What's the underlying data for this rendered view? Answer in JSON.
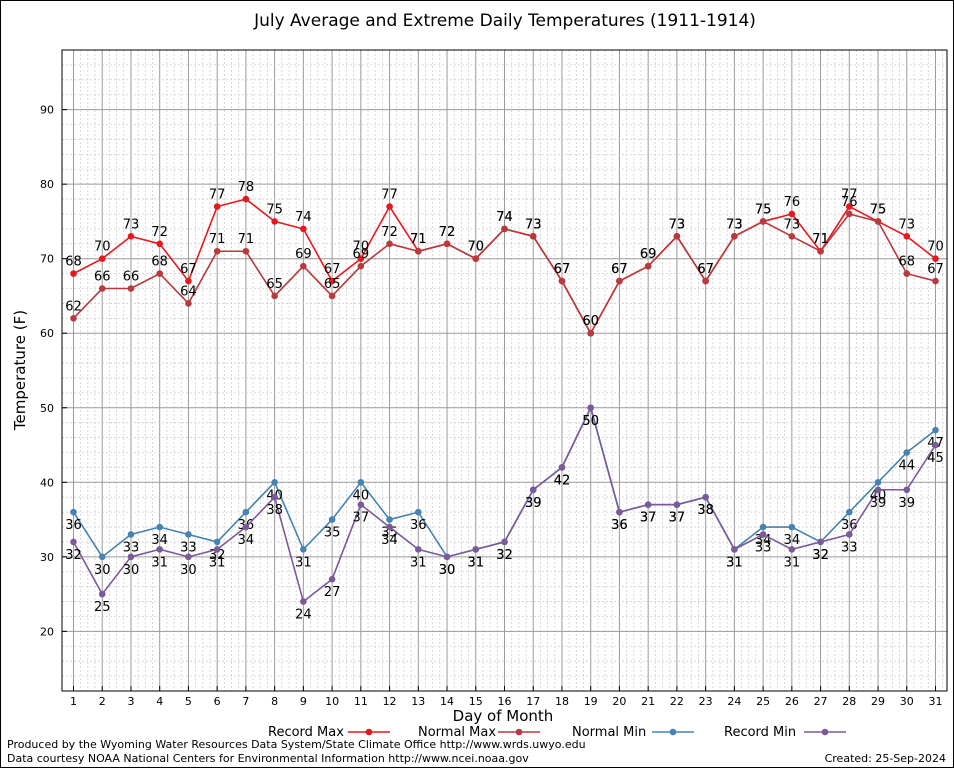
{
  "chart_data": {
    "type": "line",
    "title": "July Average and Extreme Daily Temperatures (1911-1914)",
    "xlabel": "Day of Month",
    "ylabel": "Temperature (F)",
    "x": [
      1,
      2,
      3,
      4,
      5,
      6,
      7,
      8,
      9,
      10,
      11,
      12,
      13,
      14,
      15,
      16,
      17,
      18,
      19,
      20,
      21,
      22,
      23,
      24,
      25,
      26,
      27,
      28,
      29,
      30,
      31
    ],
    "xlim": [
      0.6,
      31.4
    ],
    "ylim": [
      12,
      98
    ],
    "yticks": [
      20,
      30,
      40,
      50,
      60,
      70,
      80,
      90
    ],
    "grid": true,
    "legend_position": "bottom",
    "series": [
      {
        "name": "Record Max",
        "color": "#e8191e",
        "values": [
          68,
          70,
          73,
          72,
          67,
          77,
          78,
          75,
          74,
          67,
          70,
          77,
          71,
          72,
          70,
          74,
          73,
          67,
          60,
          67,
          69,
          73,
          67,
          73,
          75,
          76,
          71,
          77,
          75,
          73,
          70
        ]
      },
      {
        "name": "Normal Max",
        "color": "#b8393e",
        "values": [
          62,
          66,
          66,
          68,
          64,
          71,
          71,
          65,
          69,
          65,
          69,
          72,
          71,
          72,
          70,
          74,
          73,
          67,
          60,
          67,
          69,
          73,
          67,
          73,
          75,
          73,
          71,
          76,
          75,
          68,
          67
        ]
      },
      {
        "name": "Normal Min",
        "color": "#4682b4",
        "values": [
          36,
          30,
          33,
          34,
          33,
          32,
          36,
          40,
          31,
          35,
          40,
          35,
          36,
          30,
          31,
          32,
          39,
          42,
          50,
          36,
          37,
          37,
          38,
          31,
          34,
          34,
          32,
          36,
          40,
          44,
          47
        ]
      },
      {
        "name": "Record Min",
        "color": "#7b5a9a",
        "values": [
          32,
          25,
          30,
          31,
          30,
          31,
          34,
          38,
          24,
          27,
          37,
          34,
          31,
          30,
          31,
          32,
          39,
          42,
          50,
          36,
          37,
          37,
          38,
          31,
          33,
          31,
          32,
          33,
          39,
          39,
          45
        ]
      }
    ]
  },
  "footer": {
    "produced_by": "Produced by the Wyoming Water Resources Data System/State Climate Office http://www.wrds.uwyo.edu",
    "courtesy": "Data courtesy NOAA National Centers for Environmental Information http://www.ncei.noaa.gov",
    "created": "Created:  25-Sep-2024"
  }
}
